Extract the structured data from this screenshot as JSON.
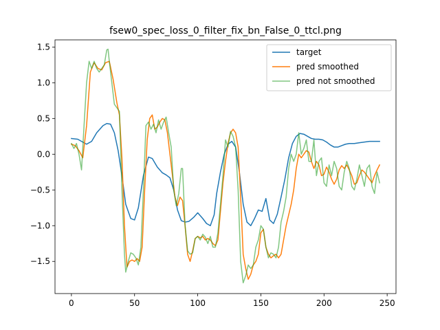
{
  "chart_data": {
    "type": "line",
    "title": "fsew0_spec_loss_0_filter_fix_bn_False_0_ttcl.png",
    "xlabel": "",
    "ylabel": "",
    "xlim": [
      -13,
      257
    ],
    "ylim": [
      -1.95,
      1.6
    ],
    "xticks": [
      0,
      50,
      100,
      150,
      200,
      250
    ],
    "yticks": [
      -1.5,
      -1.0,
      -0.5,
      0.0,
      0.5,
      1.0,
      1.5
    ],
    "ytick_labels": [
      "−1.5",
      "−1.0",
      "−0.5",
      "0.0",
      "0.5",
      "1.0",
      "1.5"
    ],
    "grid": false,
    "legend_position": "upper right",
    "series": [
      {
        "name": "target",
        "color": "#1f77b4",
        "x": [
          0,
          5,
          8,
          12,
          16,
          20,
          25,
          28,
          31,
          34,
          37,
          40,
          43,
          47,
          50,
          53,
          57,
          61,
          64,
          68,
          72,
          75,
          78,
          81,
          84,
          87,
          90,
          93,
          97,
          100,
          104,
          107,
          110,
          113,
          115,
          118,
          121,
          124,
          127,
          130,
          133,
          136,
          139,
          142,
          145,
          148,
          151,
          154,
          157,
          160,
          163,
          166,
          169,
          172,
          175,
          178,
          181,
          184,
          187,
          190,
          193,
          196,
          199,
          202,
          205,
          208,
          211,
          214,
          217,
          220,
          224,
          228,
          232,
          236,
          240,
          244
        ],
        "y": [
          0.22,
          0.21,
          0.18,
          0.14,
          0.18,
          0.3,
          0.4,
          0.43,
          0.42,
          0.3,
          0.05,
          -0.3,
          -0.7,
          -0.9,
          -0.92,
          -0.75,
          -0.3,
          -0.04,
          -0.06,
          -0.18,
          -0.26,
          -0.29,
          -0.33,
          -0.5,
          -0.78,
          -0.93,
          -0.95,
          -0.94,
          -0.88,
          -0.82,
          -0.9,
          -0.97,
          -1.0,
          -0.85,
          -0.55,
          -0.25,
          0.0,
          0.14,
          0.18,
          0.1,
          -0.25,
          -0.7,
          -0.95,
          -1.0,
          -0.9,
          -0.78,
          -0.8,
          -0.62,
          -0.92,
          -0.97,
          -0.84,
          -0.6,
          -0.35,
          -0.05,
          0.15,
          0.25,
          0.29,
          0.28,
          0.25,
          0.22,
          0.21,
          0.21,
          0.2,
          0.17,
          0.13,
          0.1,
          0.1,
          0.12,
          0.14,
          0.15,
          0.15,
          0.16,
          0.17,
          0.18,
          0.18,
          0.18
        ]
      },
      {
        "name": "pred smoothed",
        "color": "#ff7f0e",
        "x": [
          0,
          3,
          6,
          9,
          12,
          15,
          18,
          21,
          24,
          27,
          30,
          33,
          36,
          38,
          40,
          42,
          44,
          46,
          48,
          50,
          52,
          54,
          56,
          58,
          60,
          62,
          64,
          66,
          68,
          70,
          72,
          74,
          76,
          78,
          80,
          82,
          84,
          86,
          88,
          90,
          92,
          94,
          96,
          98,
          100,
          102,
          104,
          106,
          108,
          110,
          112,
          114,
          116,
          118,
          120,
          122,
          124,
          126,
          128,
          130,
          132,
          134,
          136,
          138,
          140,
          142,
          144,
          146,
          148,
          150,
          152,
          154,
          156,
          158,
          160,
          162,
          164,
          166,
          168,
          170,
          172,
          174,
          176,
          178,
          180,
          182,
          184,
          186,
          188,
          190,
          192,
          194,
          196,
          198,
          200,
          202,
          204,
          206,
          208,
          210,
          212,
          214,
          216,
          218,
          220,
          222,
          224,
          226,
          228,
          230,
          232,
          234,
          236,
          238,
          240,
          242,
          244
        ],
        "y": [
          0.14,
          0.12,
          0.05,
          -0.05,
          0.4,
          1.15,
          1.28,
          1.2,
          1.18,
          1.28,
          1.3,
          1.05,
          0.72,
          0.55,
          -0.05,
          -1.0,
          -1.58,
          -1.5,
          -1.48,
          -1.5,
          -1.46,
          -1.5,
          -1.3,
          -0.5,
          0.2,
          0.5,
          0.55,
          0.35,
          0.38,
          0.45,
          0.5,
          0.48,
          0.3,
          0.0,
          -0.3,
          -0.6,
          -0.72,
          -0.6,
          -0.65,
          -1.0,
          -1.4,
          -1.5,
          -1.35,
          -1.18,
          -1.15,
          -1.17,
          -1.15,
          -1.2,
          -1.18,
          -1.2,
          -1.25,
          -1.28,
          -1.2,
          -0.8,
          -0.4,
          -0.1,
          0.15,
          0.3,
          0.35,
          0.3,
          0.1,
          -0.6,
          -1.4,
          -1.6,
          -1.75,
          -1.68,
          -1.55,
          -1.5,
          -1.4,
          -1.1,
          -1.05,
          -1.3,
          -1.4,
          -1.45,
          -1.42,
          -1.4,
          -1.45,
          -1.4,
          -1.2,
          -1.0,
          -0.85,
          -0.7,
          -0.5,
          -0.2,
          0.0,
          -0.05,
          0.0,
          0.05,
          0.03,
          -0.1,
          -0.2,
          -0.1,
          -0.15,
          -0.3,
          -0.28,
          -0.18,
          -0.25,
          -0.35,
          -0.42,
          -0.35,
          -0.22,
          -0.16,
          -0.2,
          -0.15,
          -0.22,
          -0.3,
          -0.42,
          -0.4,
          -0.3,
          -0.22,
          -0.25,
          -0.3,
          -0.35,
          -0.4,
          -0.3,
          -0.22,
          -0.15
        ]
      },
      {
        "name": "pred not smoothed",
        "color": "#2ca02c",
        "opacity": 0.6,
        "x": [
          0,
          2,
          4,
          6,
          8,
          10,
          12,
          14,
          16,
          18,
          20,
          22,
          24,
          26,
          28,
          29,
          30,
          32,
          34,
          36,
          38,
          40,
          42,
          43,
          45,
          47,
          49,
          51,
          53,
          55,
          57,
          59,
          61,
          63,
          65,
          67,
          69,
          71,
          73,
          75,
          77,
          79,
          81,
          83,
          85,
          87,
          88,
          89,
          90,
          92,
          94,
          96,
          98,
          100,
          102,
          104,
          106,
          108,
          110,
          112,
          114,
          116,
          118,
          120,
          122,
          124,
          126,
          128,
          130,
          132,
          134,
          136,
          138,
          140,
          142,
          144,
          146,
          148,
          150,
          152,
          154,
          156,
          158,
          160,
          162,
          164,
          166,
          168,
          170,
          172,
          174,
          176,
          178,
          180,
          182,
          184,
          186,
          188,
          190,
          192,
          194,
          196,
          198,
          200,
          202,
          204,
          206,
          208,
          210,
          212,
          214,
          216,
          218,
          220,
          222,
          224,
          226,
          228,
          230,
          232,
          234,
          236,
          238,
          240,
          242,
          244
        ],
        "y": [
          0.15,
          0.08,
          0.15,
          0.0,
          -0.22,
          0.4,
          1.0,
          1.3,
          1.2,
          1.3,
          1.2,
          1.15,
          1.2,
          1.25,
          1.46,
          1.47,
          1.3,
          1.0,
          0.7,
          0.65,
          0.6,
          -0.5,
          -1.4,
          -1.65,
          -1.5,
          -1.38,
          -1.4,
          -1.45,
          -1.55,
          -1.3,
          -0.5,
          0.4,
          0.45,
          0.35,
          0.42,
          0.3,
          0.48,
          0.35,
          0.45,
          0.52,
          0.3,
          0.1,
          -0.5,
          -0.72,
          -0.55,
          -0.2,
          -0.2,
          -0.6,
          -1.0,
          -1.35,
          -1.4,
          -1.38,
          -1.18,
          -1.15,
          -1.2,
          -1.12,
          -1.16,
          -1.25,
          -1.15,
          -1.3,
          -1.3,
          -1.1,
          -0.7,
          -0.3,
          0.2,
          0.1,
          0.32,
          0.25,
          0.1,
          -0.5,
          -1.5,
          -1.8,
          -1.7,
          -1.55,
          -1.6,
          -1.55,
          -1.3,
          -1.2,
          -1.0,
          -1.05,
          -1.3,
          -1.45,
          -1.38,
          -1.4,
          -1.45,
          -1.3,
          -0.95,
          -0.8,
          -0.6,
          -0.2,
          0.0,
          -0.1,
          0.0,
          0.3,
          0.0,
          0.08,
          0.2,
          -0.1,
          -0.1,
          0.2,
          -0.3,
          -0.1,
          -0.05,
          -0.4,
          -0.45,
          -0.15,
          -0.3,
          -0.1,
          -0.2,
          -0.45,
          -0.5,
          -0.25,
          -0.1,
          -0.2,
          -0.45,
          -0.5,
          -0.35,
          -0.15,
          -0.3,
          -0.45,
          -0.2,
          -0.15,
          -0.45,
          -0.55,
          -0.25,
          -0.4
        ]
      }
    ]
  }
}
